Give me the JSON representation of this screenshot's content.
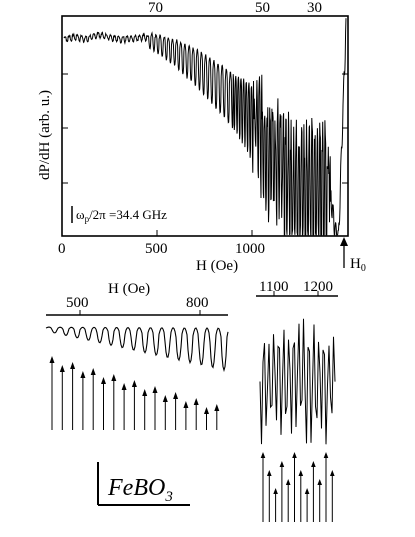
{
  "chart_data": [
    {
      "type": "line",
      "panel": "main",
      "xlabel": "H (Oe)",
      "ylabel": "dP/dH (arb. u.)",
      "xlim": [
        0,
        1500
      ],
      "x_ticks": [
        "0",
        "500",
        "1000"
      ],
      "top_ticks": [
        "70",
        "50",
        "30"
      ],
      "annotation": "ω_p/2π =34.4 GHz",
      "annotation_parts": {
        "symbol": "ω",
        "sub": "p",
        "rest": "/2π =34.4 GHz"
      },
      "marker_label_main": "H",
      "marker_label_sub": "0",
      "marker_value": 1440,
      "grid": false,
      "series": [
        {
          "x": [
            0,
            60,
            120,
            180,
            240,
            300,
            360,
            420,
            480,
            540,
            600,
            660,
            720,
            780,
            840,
            900,
            960,
            1020,
            1080,
            1140,
            1200,
            1260,
            1320,
            1360,
            1400,
            1420,
            1440,
            1460,
            1480,
            1500
          ],
          "y": [
            0.9,
            0.91,
            0.9,
            0.92,
            0.91,
            0.9,
            0.9,
            0.91,
            0.9,
            0.88,
            0.86,
            0.83,
            0.8,
            0.76,
            0.72,
            0.68,
            0.64,
            0.58,
            0.5,
            0.42,
            0.35,
            0.32,
            0.3,
            0.3,
            0.32,
            0.2,
            0.05,
            0.0,
            0.5,
            0.97
          ]
        }
      ]
    },
    {
      "type": "line",
      "panel": "inset-left",
      "xlabel": "H (Oe)",
      "x_ticks": [
        "500",
        "800"
      ],
      "marker_count": 17
    },
    {
      "type": "line",
      "panel": "inset-right",
      "x_ticks": [
        "1100",
        "1200"
      ],
      "marker_count": 12
    }
  ],
  "label": {
    "main": "FeBO",
    "sub": "3"
  }
}
